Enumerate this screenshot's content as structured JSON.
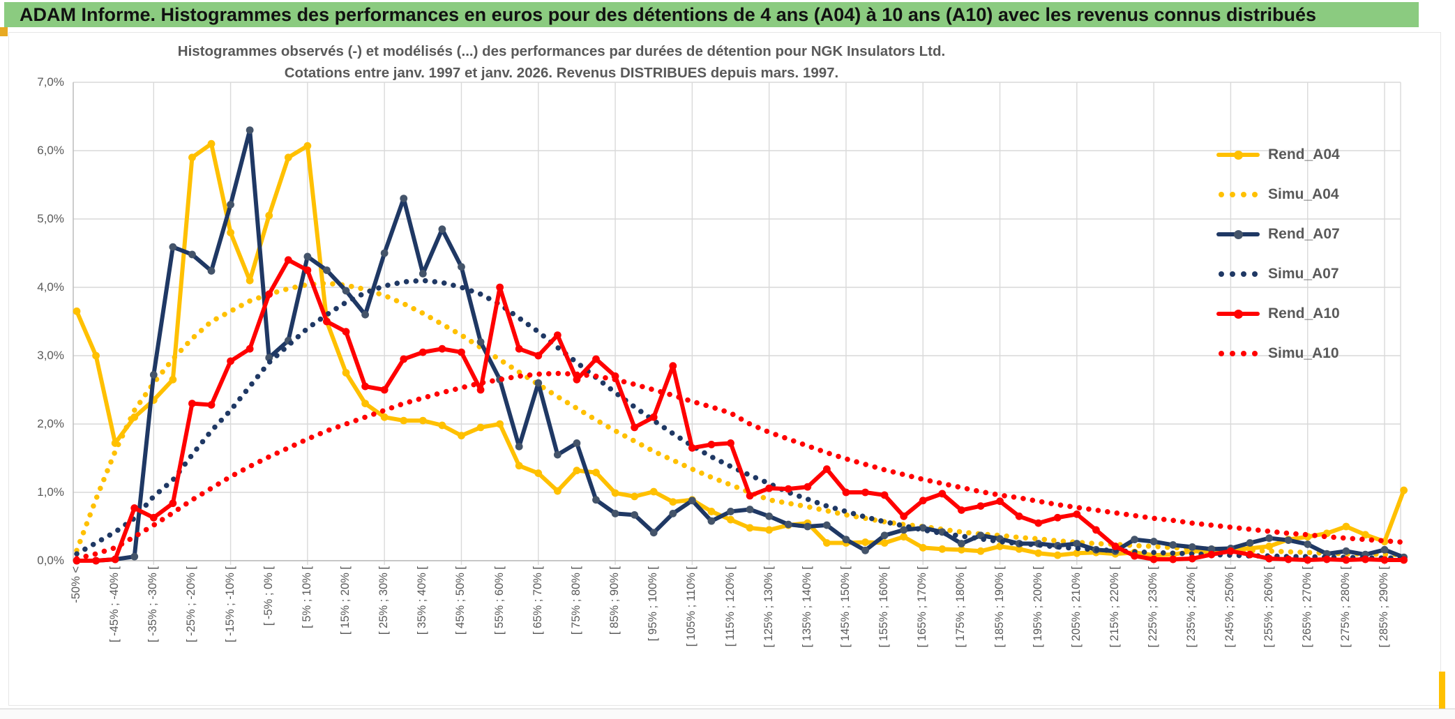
{
  "banner": {
    "title": "ADAM Informe. Histogrammes des performances en euros pour des détentions de 4 ans (A04) à 10 ans (A10) avec les revenus connus distribués"
  },
  "chart_data": {
    "type": "line",
    "title_line1": "Histogrammes observés (-) et modélisés (...) des performances par durées de détention pour NGK Insulators Ltd.",
    "title_line2": "Cotations entre janv. 1997 et janv. 2026. Revenus DISTRIBUES depuis mars. 1997.",
    "ylabel": "",
    "xlabel": "",
    "ylim": [
      0,
      7
    ],
    "grid": true,
    "legend_position": "right",
    "y_tick_labels": [
      "7,0%",
      "6,0%",
      "5,0%",
      "4,0%",
      "3,0%",
      "2,0%",
      "1,0%",
      "0,0%"
    ],
    "x_tick_labels": [
      "-50% <",
      "[ -45% ; -40% [",
      "[ -35% ; -30% [",
      "[ -25% ; -20% [",
      "[ -15% ; -10% [",
      "[ -5% ; 0% [",
      "[ 5% ; 10% [",
      "[ 15% ; 20% [",
      "[ 25% ; 30% [",
      "[ 35% ; 40% [",
      "[ 45% ; 50% [",
      "[ 55% ; 60% [",
      "[ 65% ; 70% [",
      "[ 75% ; 80% [",
      "[ 85% ; 90% [",
      "[ 95% ; 100% [",
      "[ 105% ; 110% [",
      "[ 115% ; 120% [",
      "[ 125% ; 130% [",
      "[ 135% ; 140% [",
      "[ 145% ; 150% [",
      "[ 155% ; 160% [",
      "[ 165% ; 170% [",
      "[ 175% ; 180% [",
      "[ 185% ; 190% [",
      "[ 195% ; 200% [",
      "[ 205% ; 210% [",
      "[ 215% ; 220% [",
      "[ 225% ; 230% [",
      "[ 235% ; 240% [",
      "[ 245% ; 250% [",
      "[ 255% ; 260% [",
      "[ 265% ; 270% [",
      "[ 275% ; 280% [",
      "[ 285% ; 290% ["
    ],
    "x_ticks_on_every_other_category": true,
    "categories_count": 70,
    "series": [
      {
        "name": "Rend_A04",
        "style": "solid",
        "color": "#FFC000",
        "marker_color": "#FFC000",
        "values": [
          3.65,
          3.0,
          1.72,
          2.1,
          2.35,
          2.65,
          5.9,
          6.1,
          4.8,
          4.1,
          5.05,
          5.9,
          6.07,
          3.5,
          2.75,
          2.3,
          2.1,
          2.05,
          2.05,
          1.98,
          1.83,
          1.95,
          2.0,
          1.39,
          1.28,
          1.02,
          1.32,
          1.29,
          0.99,
          0.94,
          1.01,
          0.86,
          0.89,
          0.72,
          0.6,
          0.48,
          0.45,
          0.52,
          0.55,
          0.26,
          0.26,
          0.27,
          0.26,
          0.35,
          0.19,
          0.17,
          0.16,
          0.14,
          0.21,
          0.17,
          0.11,
          0.08,
          0.11,
          0.12,
          0.1,
          0.12,
          0.08,
          0.09,
          0.14,
          0.13,
          0.16,
          0.18,
          0.21,
          0.31,
          0.35,
          0.4,
          0.5,
          0.38,
          0.28,
          1.03
        ]
      },
      {
        "name": "Simu_A04",
        "style": "dotted",
        "color": "#FFC000",
        "values": [
          0.15,
          0.9,
          1.6,
          2.2,
          2.6,
          2.95,
          3.25,
          3.5,
          3.65,
          3.8,
          3.9,
          3.98,
          4.04,
          4.06,
          4.03,
          3.97,
          3.88,
          3.76,
          3.62,
          3.46,
          3.3,
          3.12,
          2.94,
          2.76,
          2.58,
          2.4,
          2.23,
          2.06,
          1.9,
          1.75,
          1.6,
          1.47,
          1.34,
          1.22,
          1.11,
          1.0,
          0.89,
          0.84,
          0.79,
          0.73,
          0.67,
          0.62,
          0.57,
          0.53,
          0.5,
          0.46,
          0.42,
          0.39,
          0.37,
          0.34,
          0.32,
          0.29,
          0.27,
          0.25,
          0.24,
          0.22,
          0.21,
          0.19,
          0.18,
          0.17,
          0.16,
          0.15,
          0.14,
          0.13,
          0.12,
          0.11,
          0.1,
          0.1,
          0.09,
          0.09
        ]
      },
      {
        "name": "Rend_A07",
        "style": "solid",
        "color": "#1F3864",
        "marker_color": "#44546A",
        "values": [
          0,
          0,
          0.02,
          0.06,
          2.72,
          4.59,
          4.48,
          4.24,
          5.21,
          6.3,
          2.97,
          3.22,
          4.45,
          4.25,
          3.95,
          3.6,
          4.5,
          5.3,
          4.2,
          4.85,
          4.3,
          3.2,
          2.65,
          1.67,
          2.6,
          1.55,
          1.72,
          0.89,
          0.69,
          0.67,
          0.41,
          0.69,
          0.88,
          0.58,
          0.72,
          0.75,
          0.65,
          0.53,
          0.5,
          0.52,
          0.31,
          0.15,
          0.37,
          0.45,
          0.48,
          0.42,
          0.25,
          0.37,
          0.32,
          0.25,
          0.25,
          0.22,
          0.25,
          0.16,
          0.14,
          0.31,
          0.28,
          0.23,
          0.2,
          0.17,
          0.18,
          0.26,
          0.33,
          0.3,
          0.24,
          0.1,
          0.14,
          0.09,
          0.16,
          0.05
        ]
      },
      {
        "name": "Simu_A07",
        "style": "dotted",
        "color": "#1F3864",
        "values": [
          0.1,
          0.26,
          0.42,
          0.62,
          0.94,
          1.18,
          1.55,
          1.9,
          2.2,
          2.55,
          2.9,
          3.15,
          3.4,
          3.6,
          3.78,
          3.92,
          4.02,
          4.08,
          4.1,
          4.07,
          4.0,
          3.9,
          3.75,
          3.55,
          3.35,
          3.12,
          2.9,
          2.68,
          2.46,
          2.25,
          2.05,
          1.86,
          1.68,
          1.52,
          1.38,
          1.25,
          1.13,
          1.0,
          0.9,
          0.8,
          0.72,
          0.64,
          0.57,
          0.51,
          0.45,
          0.4,
          0.36,
          0.32,
          0.28,
          0.25,
          0.23,
          0.2,
          0.18,
          0.16,
          0.15,
          0.13,
          0.12,
          0.11,
          0.1,
          0.09,
          0.08,
          0.07,
          0.07,
          0.06,
          0.06,
          0.05,
          0.05,
          0.04,
          0.04,
          0.04
        ]
      },
      {
        "name": "Rend_A10",
        "style": "solid",
        "color": "#FF0000",
        "marker_color": "#FF0000",
        "values": [
          0,
          0,
          0.02,
          0.77,
          0.63,
          0.84,
          2.3,
          2.28,
          2.92,
          3.1,
          3.9,
          4.4,
          4.25,
          3.5,
          3.35,
          2.55,
          2.5,
          2.95,
          3.05,
          3.1,
          3.05,
          2.5,
          4.0,
          3.1,
          3.0,
          3.3,
          2.65,
          2.95,
          2.7,
          1.95,
          2.1,
          2.85,
          1.65,
          1.7,
          1.72,
          0.95,
          1.06,
          1.05,
          1.08,
          1.34,
          1.0,
          1.0,
          0.96,
          0.65,
          0.88,
          0.98,
          0.74,
          0.8,
          0.87,
          0.65,
          0.55,
          0.63,
          0.68,
          0.45,
          0.21,
          0.07,
          0.02,
          0.02,
          0.03,
          0.09,
          0.14,
          0.09,
          0.03,
          0.02,
          0.01,
          0.02,
          0.01,
          0.02,
          0.01,
          0.01
        ]
      },
      {
        "name": "Simu_A10",
        "style": "dotted",
        "color": "#FF0000",
        "values": [
          0.03,
          0.1,
          0.19,
          0.35,
          0.52,
          0.7,
          0.89,
          1.06,
          1.23,
          1.38,
          1.52,
          1.65,
          1.78,
          1.9,
          2.0,
          2.1,
          2.2,
          2.3,
          2.38,
          2.46,
          2.53,
          2.6,
          2.65,
          2.7,
          2.73,
          2.74,
          2.73,
          2.7,
          2.65,
          2.58,
          2.5,
          2.42,
          2.33,
          2.25,
          2.16,
          2.0,
          1.88,
          1.78,
          1.68,
          1.58,
          1.49,
          1.41,
          1.33,
          1.26,
          1.19,
          1.13,
          1.07,
          1.01,
          0.96,
          0.92,
          0.87,
          0.82,
          0.78,
          0.74,
          0.7,
          0.66,
          0.62,
          0.59,
          0.55,
          0.52,
          0.49,
          0.46,
          0.43,
          0.4,
          0.38,
          0.35,
          0.33,
          0.31,
          0.29,
          0.27
        ]
      }
    ]
  },
  "colors": {
    "banner_green": "#8BCB80",
    "gold_accent": "#FFC000",
    "grid": "#D9D9D9",
    "axis_line": "#BFBFBF",
    "text_gray": "#595959",
    "series_gold": "#FFC000",
    "series_navy": "#1F3864",
    "series_navy_marker": "#44546A",
    "series_red": "#FF0000"
  }
}
